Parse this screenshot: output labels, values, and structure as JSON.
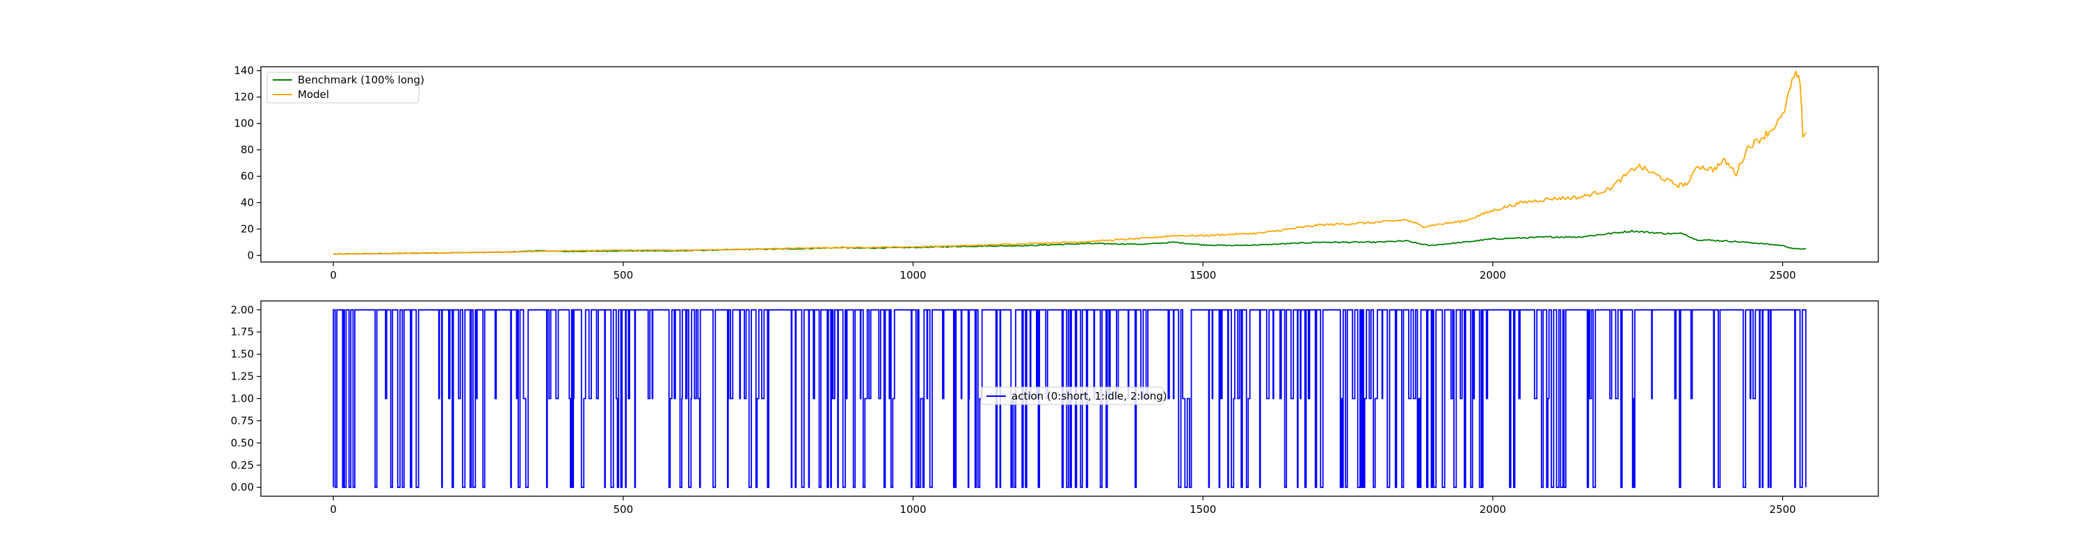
{
  "chart_data": [
    {
      "type": "line",
      "x_range": [
        0,
        2540
      ],
      "xlim": [
        -125,
        2665
      ],
      "ylim": [
        -5,
        143
      ],
      "x_ticks": [
        0,
        500,
        1000,
        1500,
        2000,
        2500
      ],
      "x_tick_labels": [
        "0",
        "500",
        "1000",
        "1500",
        "2000",
        "2500"
      ],
      "y_ticks": [
        0,
        20,
        40,
        60,
        80,
        100,
        120,
        140
      ],
      "y_tick_labels": [
        "0",
        "20",
        "40",
        "60",
        "80",
        "100",
        "120",
        "140"
      ],
      "grid": false,
      "legend_position": "upper-left",
      "series": [
        {
          "name": "Benchmark (100% long)",
          "color": "#008000",
          "points": [
            [
              0,
              1
            ],
            [
              100,
              1.5
            ],
            [
              200,
              2
            ],
            [
              300,
              2.5
            ],
            [
              350,
              3.5
            ],
            [
              400,
              3
            ],
            [
              500,
              3.5
            ],
            [
              600,
              3.5
            ],
            [
              700,
              4.5
            ],
            [
              800,
              5
            ],
            [
              880,
              6
            ],
            [
              900,
              5.5
            ],
            [
              1000,
              6
            ],
            [
              1100,
              7
            ],
            [
              1200,
              7.5
            ],
            [
              1300,
              9
            ],
            [
              1400,
              8.5
            ],
            [
              1450,
              10
            ],
            [
              1500,
              8
            ],
            [
              1550,
              7.5
            ],
            [
              1600,
              8
            ],
            [
              1700,
              10
            ],
            [
              1800,
              10
            ],
            [
              1850,
              11
            ],
            [
              1890,
              7.5
            ],
            [
              1950,
              10
            ],
            [
              2000,
              12.5
            ],
            [
              2100,
              14
            ],
            [
              2150,
              14
            ],
            [
              2200,
              16.5
            ],
            [
              2240,
              18.5
            ],
            [
              2300,
              16.5
            ],
            [
              2330,
              16.5
            ],
            [
              2350,
              12
            ],
            [
              2400,
              11
            ],
            [
              2450,
              9.5
            ],
            [
              2500,
              7.5
            ],
            [
              2520,
              5
            ],
            [
              2540,
              5
            ]
          ]
        },
        {
          "name": "Model",
          "color": "#FFA500",
          "points": [
            [
              0,
              1
            ],
            [
              100,
              1.5
            ],
            [
              200,
              2
            ],
            [
              300,
              2.5
            ],
            [
              400,
              3.5
            ],
            [
              500,
              4
            ],
            [
              600,
              4
            ],
            [
              700,
              4.5
            ],
            [
              800,
              5.5
            ],
            [
              900,
              6
            ],
            [
              1000,
              6.5
            ],
            [
              1100,
              7.5
            ],
            [
              1200,
              9
            ],
            [
              1300,
              10.5
            ],
            [
              1400,
              13
            ],
            [
              1450,
              15
            ],
            [
              1500,
              15
            ],
            [
              1600,
              17
            ],
            [
              1650,
              20
            ],
            [
              1700,
              23
            ],
            [
              1800,
              25
            ],
            [
              1850,
              27
            ],
            [
              1880,
              22
            ],
            [
              1950,
              26
            ],
            [
              2000,
              34
            ],
            [
              2050,
              40
            ],
            [
              2100,
              43
            ],
            [
              2150,
              44
            ],
            [
              2200,
              50
            ],
            [
              2250,
              68
            ],
            [
              2300,
              57
            ],
            [
              2320,
              53
            ],
            [
              2340,
              55
            ],
            [
              2350,
              68
            ],
            [
              2380,
              65
            ],
            [
              2400,
              72
            ],
            [
              2420,
              62
            ],
            [
              2440,
              82
            ],
            [
              2460,
              88
            ],
            [
              2480,
              95
            ],
            [
              2500,
              105
            ],
            [
              2510,
              122
            ],
            [
              2520,
              135
            ],
            [
              2525,
              137
            ],
            [
              2530,
              128
            ],
            [
              2535,
              92
            ],
            [
              2540,
              93
            ]
          ]
        }
      ]
    },
    {
      "type": "line",
      "x_range": [
        0,
        2540
      ],
      "xlim": [
        -125,
        2665
      ],
      "ylim": [
        -0.1,
        2.1
      ],
      "x_ticks": [
        0,
        500,
        1000,
        1500,
        2000,
        2500
      ],
      "x_tick_labels": [
        "0",
        "500",
        "1000",
        "1500",
        "2000",
        "2500"
      ],
      "y_ticks": [
        0.0,
        0.25,
        0.5,
        0.75,
        1.0,
        1.25,
        1.5,
        1.75,
        2.0
      ],
      "y_tick_labels": [
        "0.00",
        "0.25",
        "0.50",
        "0.75",
        "1.00",
        "1.25",
        "1.50",
        "1.75",
        "2.00"
      ],
      "grid": false,
      "legend_position": "center",
      "series": [
        {
          "name": "action (0:short, 1:idle, 2:long)",
          "color": "#0000FF",
          "values_description": "step sequence of discrete actions in {0,1,2} for steps 0..2540"
        }
      ]
    }
  ]
}
